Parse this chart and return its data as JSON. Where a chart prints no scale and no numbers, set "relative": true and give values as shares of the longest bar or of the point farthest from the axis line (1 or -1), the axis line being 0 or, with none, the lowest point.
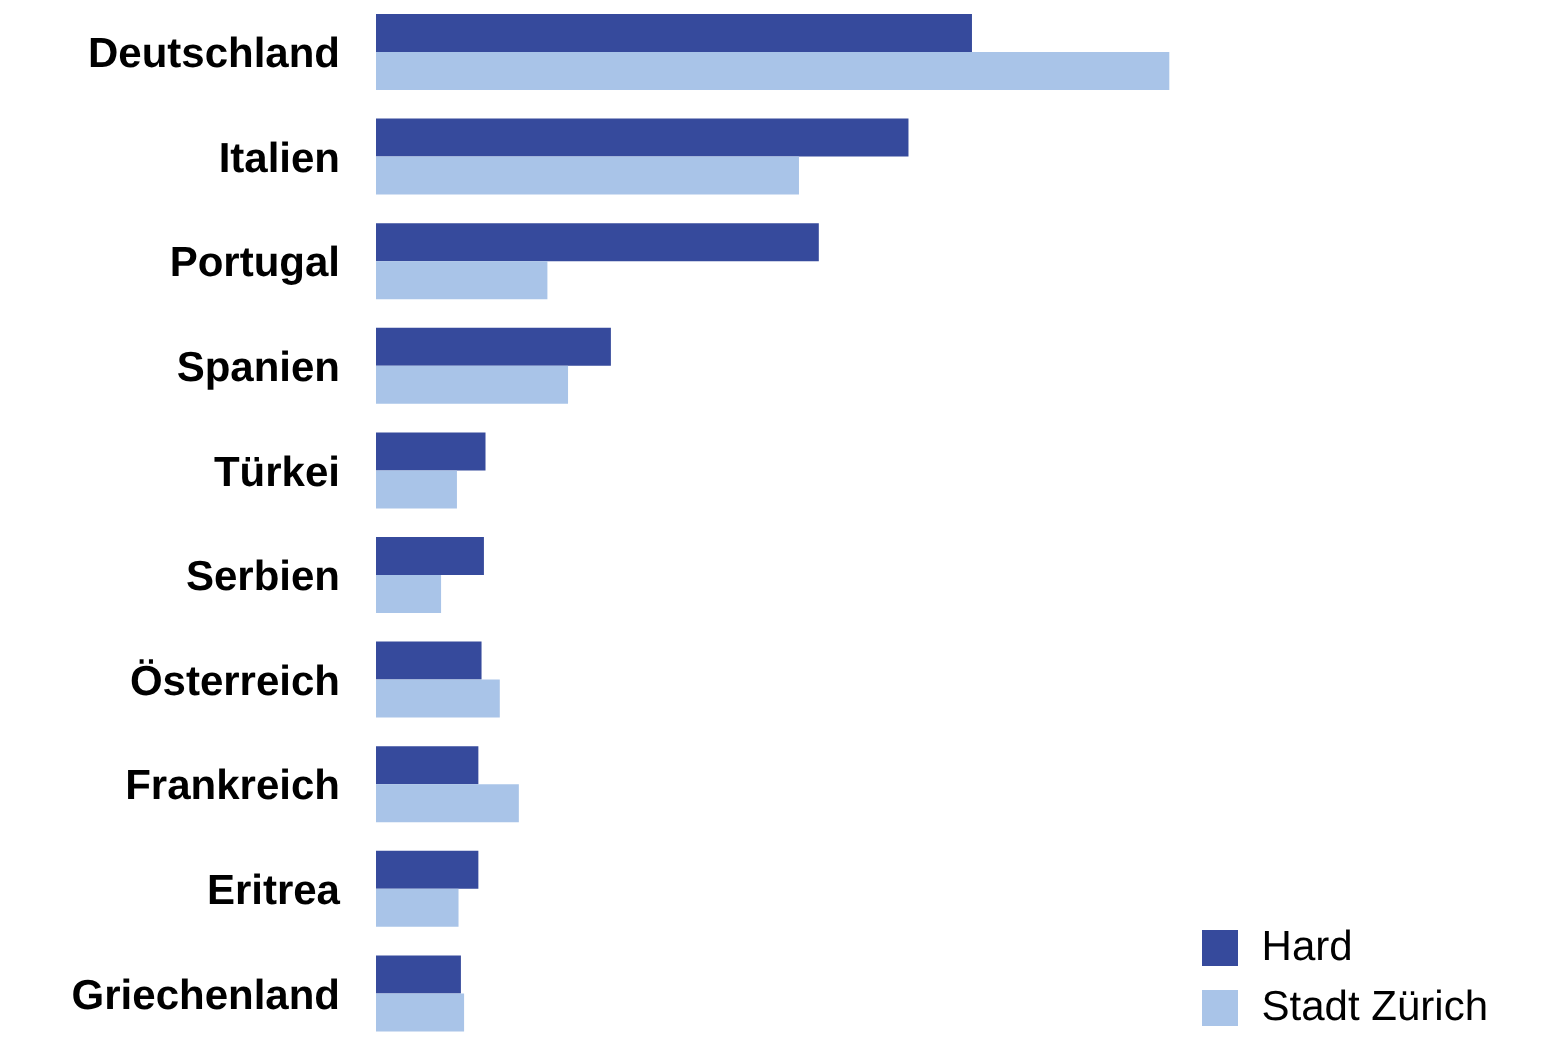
{
  "chart_data": {
    "type": "bar",
    "orientation": "horizontal",
    "relative": true,
    "legend": "bottom right",
    "categories": [
      "Deutschland",
      "Italien",
      "Portugal",
      "Spanien",
      "Türkei",
      "Serbien",
      "Österreich",
      "Frankreich",
      "Eritrea",
      "Griechenland"
    ],
    "series": [
      {
        "name": "Hard",
        "color": "#364a9c",
        "values": [
          0.751,
          0.671,
          0.558,
          0.296,
          0.138,
          0.136,
          0.133,
          0.129,
          0.129,
          0.107
        ]
      },
      {
        "name": "Stadt Zürich",
        "color": "#a9c4e8",
        "values": [
          1,
          0.533,
          0.216,
          0.242,
          0.102,
          0.082,
          0.156,
          0.18,
          0.104,
          0.111
        ]
      }
    ]
  }
}
